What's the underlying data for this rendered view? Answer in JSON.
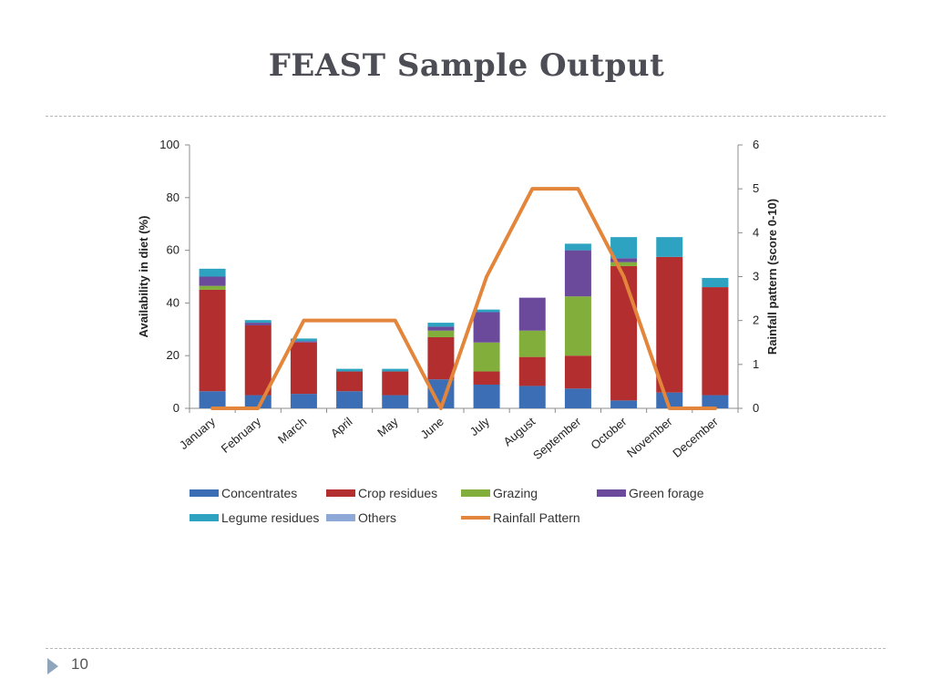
{
  "slide": {
    "title": "FEAST Sample Output",
    "page_number": "10"
  },
  "chart_data": {
    "type": "bar",
    "stacked": true,
    "categories": [
      "January",
      "February",
      "March",
      "April",
      "May",
      "June",
      "July",
      "August",
      "September",
      "October",
      "November",
      "December"
    ],
    "ylabel": "Availability in diet (%)",
    "ylim": [
      0,
      100
    ],
    "yticks": [
      0,
      20,
      40,
      60,
      80,
      100
    ],
    "y2label": "Rainfall  pattern (score 0-10)",
    "y2lim": [
      0,
      6
    ],
    "y2ticks": [
      0,
      1,
      2,
      3,
      4,
      5,
      6
    ],
    "legend_position": "bottom",
    "series": [
      {
        "name": "Concentrates",
        "color": "#3b6eb4",
        "values": [
          6.5,
          5,
          5.5,
          6.5,
          5,
          11,
          9,
          8.5,
          7.5,
          3,
          6,
          5
        ]
      },
      {
        "name": "Crop residues",
        "color": "#b32e2e",
        "values": [
          38.5,
          26.5,
          19.5,
          7.5,
          9,
          16,
          5,
          11,
          12.5,
          51,
          51.5,
          41
        ]
      },
      {
        "name": "Grazing",
        "color": "#82ae3c",
        "values": [
          1.5,
          0,
          0,
          0,
          0,
          2.5,
          11,
          10,
          22.5,
          1.5,
          0,
          0
        ]
      },
      {
        "name": "Green forage",
        "color": "#6b4a9b",
        "values": [
          3.5,
          1,
          0.5,
          0,
          0,
          1.5,
          11.5,
          12.5,
          17.5,
          1.5,
          0,
          0
        ]
      },
      {
        "name": "Legume residues",
        "color": "#2ea3c1",
        "values": [
          3,
          1,
          1,
          1,
          1,
          1.5,
          1,
          0,
          2.5,
          8,
          7.5,
          3.5
        ]
      },
      {
        "name": "Others",
        "color": "#8ea9d8",
        "values": [
          0,
          0,
          0,
          0,
          0,
          0,
          0,
          0,
          0,
          0,
          0,
          0
        ]
      }
    ],
    "line_series": {
      "name": "Rainfall Pattern",
      "color": "#e3853a",
      "axis": "secondary",
      "values": [
        0,
        0,
        2,
        2,
        2,
        0,
        3,
        5,
        5,
        3,
        0,
        0
      ]
    }
  }
}
